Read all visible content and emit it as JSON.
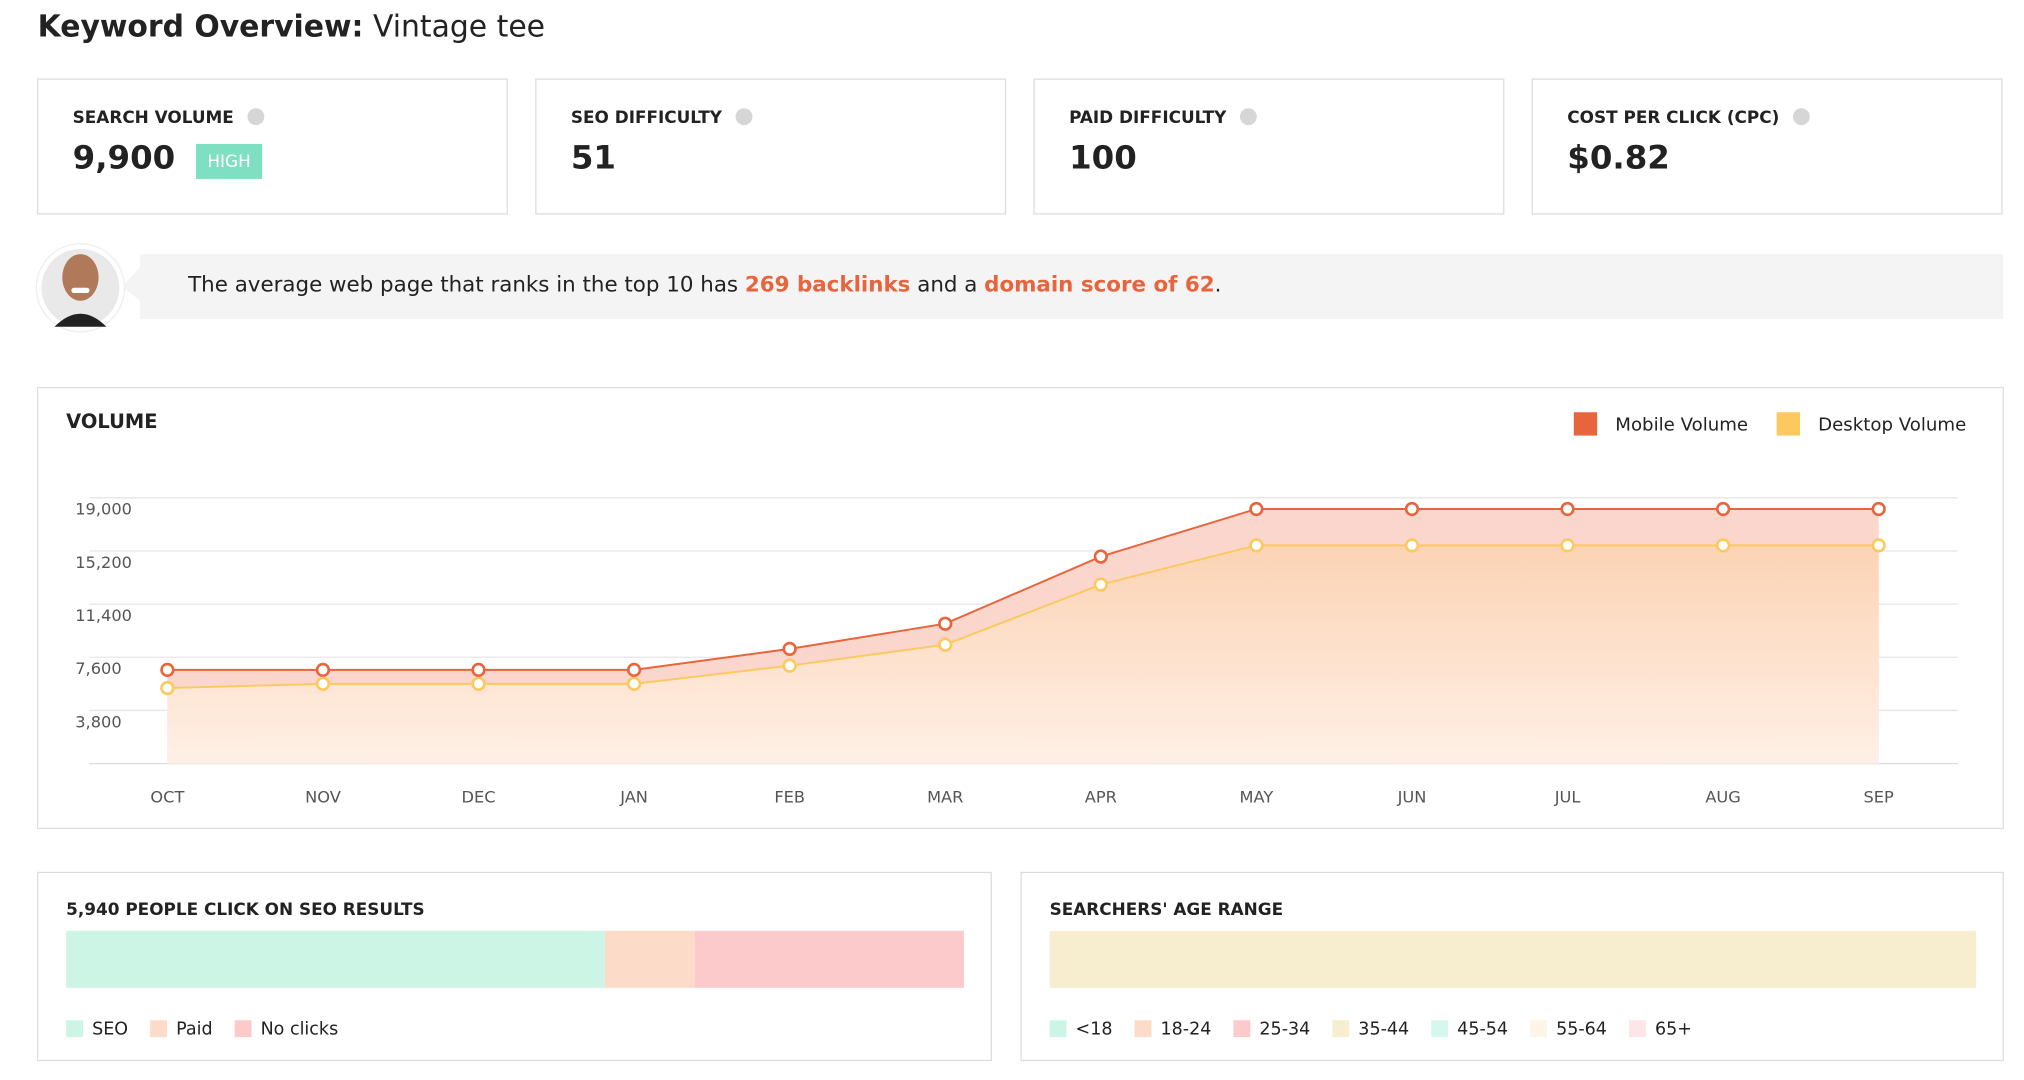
{
  "header": {
    "title_bold": "Keyword Overview:",
    "title_rest": "Vintage tee"
  },
  "cards": [
    {
      "label": "SEARCH VOLUME",
      "value": "9,900",
      "badge": "HIGH"
    },
    {
      "label": "SEO DIFFICULTY",
      "value": "51"
    },
    {
      "label": "PAID DIFFICULTY",
      "value": "100"
    },
    {
      "label": "COST PER CLICK (CPC)",
      "value": "$0.82"
    }
  ],
  "banner": {
    "parts": [
      "The average web page that ranks in the top 10 has ",
      "269 backlinks",
      " and a ",
      "domain score of 62",
      "."
    ]
  },
  "chart_data": {
    "type": "area",
    "title": "VOLUME",
    "categories": [
      "OCT",
      "NOV",
      "DEC",
      "JAN",
      "FEB",
      "MAR",
      "APR",
      "MAY",
      "JUN",
      "JUL",
      "AUG",
      "SEP"
    ],
    "series": [
      {
        "name": "Mobile Volume",
        "color": "#e8643c",
        "values": [
          6700,
          6700,
          6700,
          6700,
          8200,
          10000,
          14800,
          18200,
          18200,
          18200,
          18200,
          18200
        ]
      },
      {
        "name": "Desktop Volume",
        "color": "#fbc95e",
        "values": [
          5400,
          5700,
          5700,
          5700,
          7000,
          8500,
          12800,
          15600,
          15600,
          15600,
          15600,
          15600
        ]
      }
    ],
    "ylim": [
      0,
      19000
    ],
    "yticks": [
      {
        "value": 3800,
        "label": "3,800"
      },
      {
        "value": 7600,
        "label": "7,600"
      },
      {
        "value": 11400,
        "label": "11,400"
      },
      {
        "value": 15200,
        "label": "15,200"
      },
      {
        "value": 19000,
        "label": "19,000"
      }
    ],
    "grid": true,
    "legend": "top-right"
  },
  "seo_clicks": {
    "title": "5,940 PEOPLE CLICK ON SEO RESULTS",
    "segments": [
      {
        "name": "SEO",
        "color": "#cdf5e6",
        "value": 60
      },
      {
        "name": "Paid",
        "color": "#fcdcc8",
        "value": 10
      },
      {
        "name": "No clicks",
        "color": "#fccaca",
        "value": 30
      }
    ]
  },
  "age_range": {
    "title": "SEARCHERS' AGE RANGE",
    "segments": [
      {
        "name": "<18",
        "color": "#cdf5e6",
        "value": 0
      },
      {
        "name": "18-24",
        "color": "#fcdcc8",
        "value": 0
      },
      {
        "name": "25-34",
        "color": "#fccaca",
        "value": 0
      },
      {
        "name": "35-44",
        "color": "#f6eecf",
        "value": 100
      },
      {
        "name": "45-54",
        "color": "#d6f7ee",
        "value": 0
      },
      {
        "name": "55-64",
        "color": "#fdf5e6",
        "value": 0
      },
      {
        "name": "65+",
        "color": "#fde6e8",
        "value": 0
      }
    ]
  }
}
